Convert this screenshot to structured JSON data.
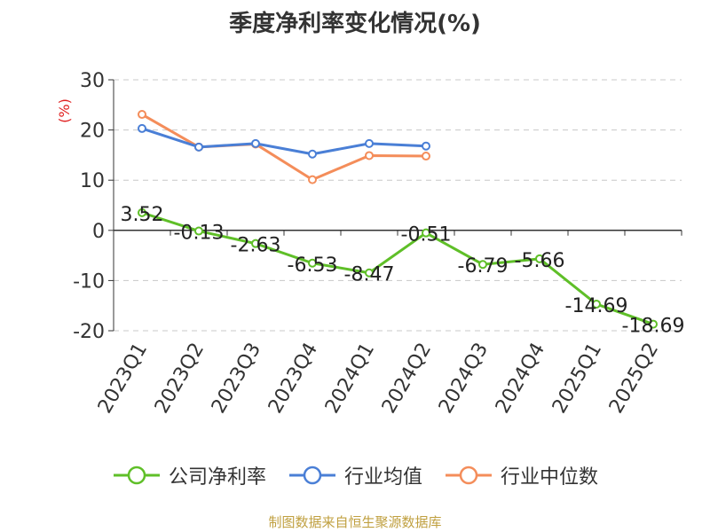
{
  "chart_data": {
    "type": "line",
    "title": "季度净利率变化情况(%)",
    "ylabel": "(%)",
    "xlabel": "",
    "categories": [
      "2023Q1",
      "2023Q2",
      "2023Q3",
      "2023Q4",
      "2024Q1",
      "2024Q2",
      "2024Q3",
      "2024Q4",
      "2025Q1",
      "2025Q2"
    ],
    "ylim": [
      -20,
      30
    ],
    "yticks": [
      30,
      20,
      10,
      0,
      -10,
      -20
    ],
    "grid": true,
    "legend_position": "bottom",
    "series": [
      {
        "name": "公司净利率",
        "color": "#5fbf28",
        "values": [
          3.52,
          -0.13,
          -2.63,
          -6.53,
          -8.47,
          -0.51,
          -6.79,
          -5.66,
          -14.69,
          -18.69
        ],
        "labels": [
          "3.52",
          "-0.13",
          "-2.63",
          "-6.53",
          "-8.47",
          "-0.51",
          "-6.79",
          "-5.66",
          "-14.69",
          "-18.69"
        ]
      },
      {
        "name": "行业均值",
        "color": "#4a7fd6",
        "values": [
          20.3,
          16.6,
          17.3,
          15.2,
          17.3,
          16.8,
          null,
          null,
          null,
          null
        ]
      },
      {
        "name": "行业中位数",
        "color": "#f48d5a",
        "values": [
          23.1,
          16.6,
          17.2,
          10.1,
          14.9,
          14.8,
          null,
          null,
          null,
          null
        ]
      }
    ]
  },
  "source": "制图数据来自恒生聚源数据库"
}
